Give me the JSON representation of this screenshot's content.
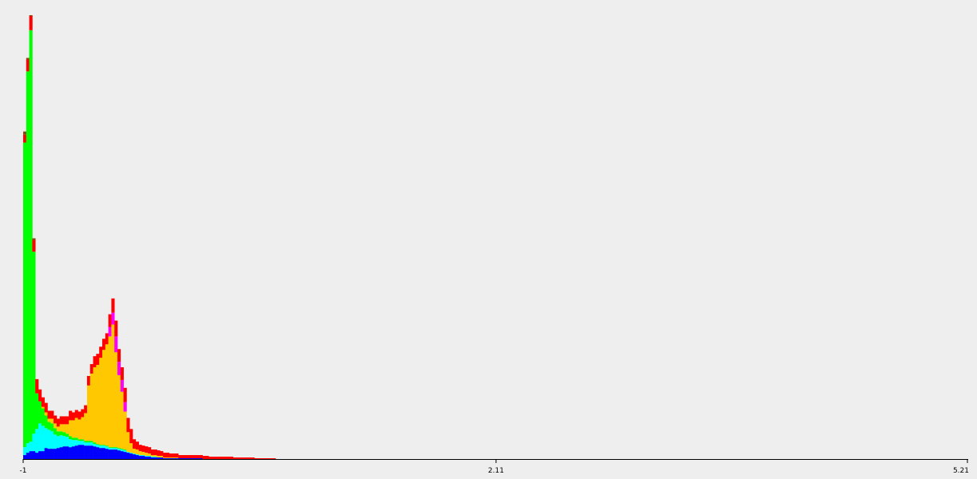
{
  "chart_data": {
    "type": "bar",
    "stacked": true,
    "title": "",
    "xlabel": "",
    "ylabel": "",
    "xlim": [
      -1,
      5.21
    ],
    "tick_labels": [
      "-1",
      "2.11",
      "5.21"
    ],
    "tick_values": [
      -1,
      2.11,
      5.21
    ],
    "bin_width": 0.02,
    "ylim": [
      0,
      560
    ],
    "grid": false,
    "legend": "none",
    "series_colors": [
      "#0000ff",
      "#00ffff",
      "#00ff00",
      "#ffc800",
      "#ff00ff",
      "#ff0000",
      "#8b4513"
    ],
    "x": [
      -0.99,
      -0.97,
      -0.95,
      -0.93,
      -0.91,
      -0.89,
      -0.87,
      -0.85,
      -0.83,
      -0.81,
      -0.79,
      -0.77,
      -0.75,
      -0.73,
      -0.71,
      -0.69,
      -0.67,
      -0.65,
      -0.63,
      -0.61,
      -0.59,
      -0.57,
      -0.55,
      -0.53,
      -0.51,
      -0.49,
      -0.47,
      -0.45,
      -0.43,
      -0.41,
      -0.39,
      -0.37,
      -0.35,
      -0.33,
      -0.31,
      -0.29,
      -0.27,
      -0.25,
      -0.23,
      -0.21,
      -0.19,
      -0.17,
      -0.15,
      -0.13,
      -0.11,
      -0.09,
      -0.07,
      -0.05,
      -0.03,
      -0.01,
      0.01,
      0.03,
      0.05,
      0.07,
      0.09,
      0.11,
      0.13,
      0.15,
      0.17,
      0.19,
      0.21,
      0.23,
      0.25,
      0.27,
      0.29,
      0.31,
      0.33,
      0.35,
      0.37,
      0.39,
      0.41,
      0.43,
      0.45,
      0.47,
      0.49,
      0.51,
      0.53,
      0.55,
      0.57,
      0.59,
      0.61,
      0.63,
      0.65
    ],
    "series": [
      {
        "values": [
          5,
          8,
          10,
          10,
          8,
          10,
          10,
          14,
          13,
          13,
          13,
          14,
          15,
          16,
          16,
          15,
          16,
          17,
          18,
          18,
          17,
          17,
          17,
          16,
          15,
          14,
          14,
          13,
          12,
          12,
          12,
          11,
          10,
          9,
          8,
          7,
          6,
          5,
          4,
          4,
          3,
          3,
          2,
          2,
          2,
          2,
          1,
          1,
          1,
          1,
          1,
          1,
          1,
          1,
          1,
          1,
          1,
          1,
          1,
          0,
          0,
          0,
          0,
          0,
          0,
          0,
          0,
          0,
          0,
          0,
          0,
          0,
          0,
          0,
          0,
          0,
          0,
          0,
          0,
          0,
          0,
          0,
          0
        ]
      },
      {
        "values": [
          10,
          12,
          12,
          22,
          30,
          35,
          32,
          25,
          24,
          22,
          18,
          15,
          15,
          13,
          12,
          10,
          8,
          7,
          5,
          5,
          4,
          4,
          4,
          3,
          3,
          3,
          3,
          3,
          2,
          2,
          2,
          2,
          2,
          2,
          1,
          1,
          1,
          1,
          1,
          1,
          1,
          1,
          1,
          1,
          0,
          0,
          0,
          0,
          0,
          0,
          0,
          0,
          0,
          0,
          0,
          0,
          0,
          0,
          0,
          0,
          0,
          0,
          0,
          0,
          0,
          0,
          0,
          0,
          0,
          0,
          0,
          0,
          0,
          0,
          0,
          0,
          0,
          0,
          0,
          0,
          0,
          0,
          0
        ]
      },
      {
        "values": [
          385,
          470,
          520,
          230,
          45,
          28,
          22,
          16,
          10,
          10,
          8,
          6,
          5,
          5,
          4,
          4,
          3,
          3,
          2,
          2,
          2,
          2,
          2,
          2,
          1,
          1,
          1,
          1,
          1,
          1,
          1,
          1,
          1,
          1,
          0,
          0,
          0,
          0,
          0,
          0,
          0,
          0,
          0,
          0,
          0,
          0,
          0,
          0,
          0,
          0,
          0,
          0,
          0,
          0,
          0,
          0,
          0,
          0,
          0,
          0,
          0,
          0,
          0,
          0,
          0,
          0,
          0,
          0,
          0,
          0,
          0,
          0,
          0,
          0,
          0,
          0,
          0,
          0,
          0,
          0,
          0,
          0,
          0
        ]
      },
      {
        "values": [
          0,
          0,
          0,
          0,
          0,
          0,
          2,
          4,
          4,
          6,
          6,
          6,
          9,
          10,
          12,
          20,
          22,
          25,
          25,
          28,
          35,
          70,
          85,
          95,
          100,
          110,
          120,
          128,
          140,
          155,
          120,
          92,
          72,
          48,
          25,
          12,
          6,
          6,
          5,
          4,
          4,
          3,
          2,
          2,
          2,
          2,
          1,
          1,
          1,
          1,
          1,
          0,
          0,
          0,
          0,
          0,
          0,
          0,
          0,
          0,
          0,
          0,
          0,
          0,
          0,
          0,
          0,
          0,
          0,
          0,
          0,
          0,
          0,
          0,
          0,
          0,
          0,
          0,
          0,
          0,
          0,
          0,
          0
        ]
      },
      {
        "values": [
          0,
          0,
          0,
          0,
          0,
          0,
          0,
          0,
          0,
          0,
          0,
          0,
          0,
          0,
          0,
          0,
          0,
          0,
          0,
          0,
          0,
          0,
          0,
          0,
          0,
          0,
          0,
          0,
          12,
          15,
          20,
          17,
          15,
          12,
          0,
          0,
          0,
          0,
          0,
          0,
          0,
          0,
          0,
          0,
          0,
          0,
          0,
          0,
          0,
          0,
          0,
          0,
          0,
          0,
          0,
          0,
          0,
          0,
          0,
          0,
          0,
          0,
          0,
          0,
          0,
          0,
          0,
          0,
          0,
          0,
          0,
          0,
          0,
          0,
          0,
          0,
          0,
          0,
          0,
          0,
          0,
          0,
          0
        ]
      },
      {
        "values": [
          10,
          15,
          18,
          15,
          18,
          15,
          12,
          12,
          10,
          10,
          10,
          10,
          10,
          10,
          10,
          12,
          10,
          10,
          10,
          10,
          10,
          12,
          12,
          14,
          14,
          14,
          14,
          14,
          16,
          18,
          20,
          16,
          16,
          18,
          18,
          18,
          12,
          10,
          8,
          8,
          8,
          8,
          7,
          7,
          7,
          6,
          6,
          6,
          5,
          5,
          5,
          4,
          4,
          4,
          4,
          4,
          4,
          4,
          4,
          4,
          4,
          3,
          3,
          3,
          3,
          3,
          3,
          3,
          3,
          2,
          2,
          2,
          2,
          2,
          2,
          2,
          1,
          1,
          1,
          1,
          1,
          1,
          1
        ]
      },
      {
        "values": [
          4,
          2,
          1,
          2,
          0,
          0,
          0,
          0,
          0,
          0,
          0,
          0,
          0,
          0,
          0,
          0,
          0,
          0,
          0,
          0,
          0,
          0,
          0,
          0,
          0,
          0,
          0,
          0,
          0,
          0,
          0,
          0,
          0,
          0,
          0,
          0,
          0,
          0,
          0,
          0,
          0,
          0,
          0,
          0,
          0,
          0,
          0,
          0,
          0,
          0,
          0,
          0,
          0,
          0,
          0,
          0,
          0,
          0,
          0,
          0,
          0,
          0,
          0,
          0,
          0,
          0,
          0,
          0,
          0,
          0,
          0,
          0,
          0,
          0,
          0,
          0,
          0,
          0,
          0,
          0,
          0,
          0,
          0
        ]
      }
    ]
  }
}
